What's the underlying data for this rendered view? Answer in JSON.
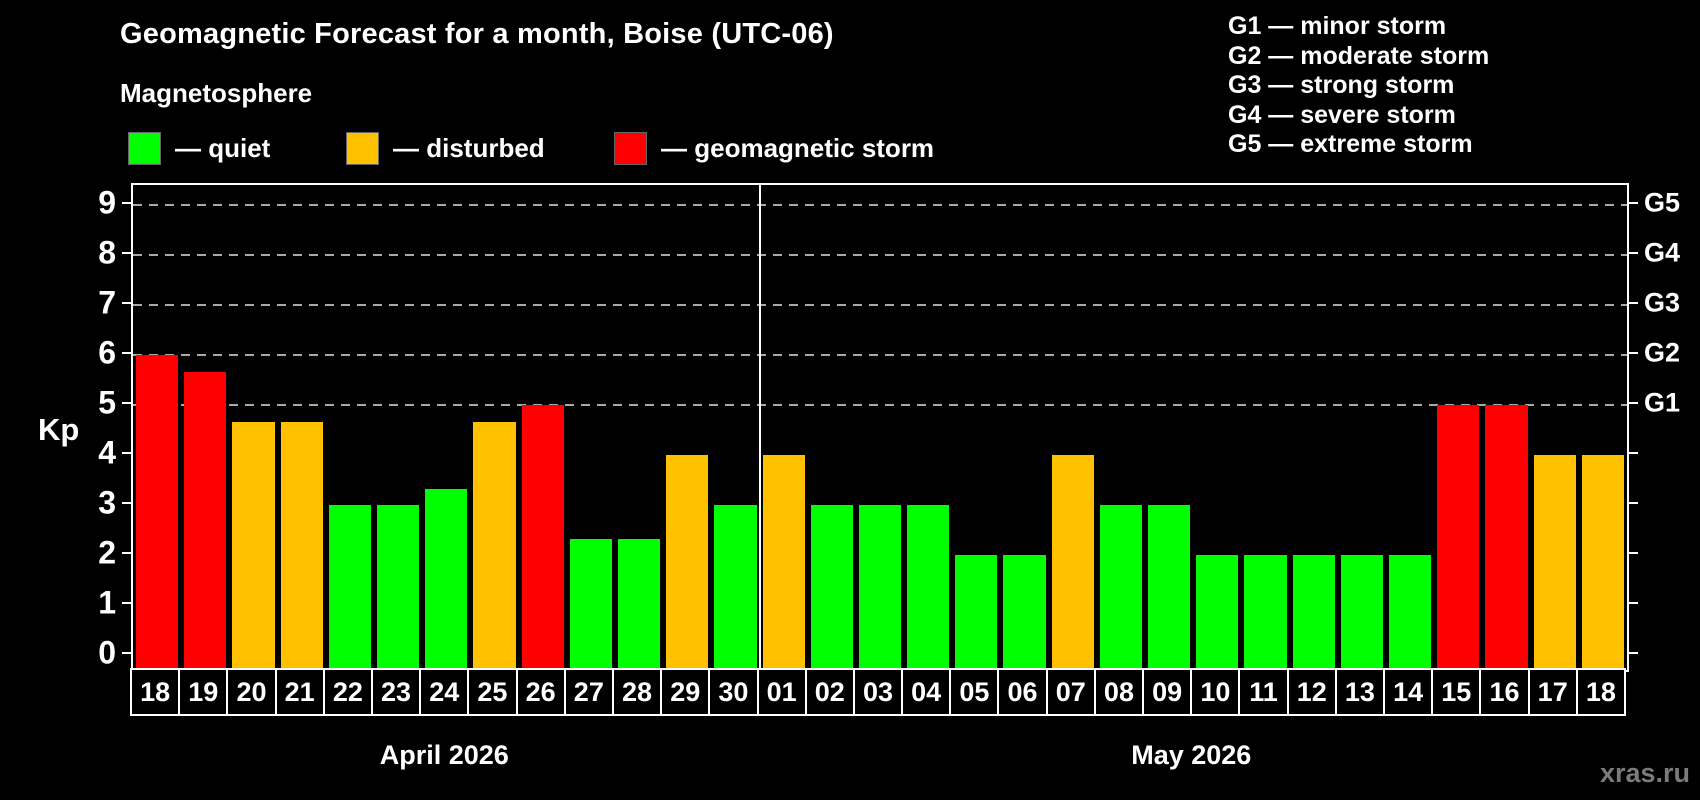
{
  "title": "Geomagnetic Forecast for a month, Boise (UTC-06)",
  "legend": {
    "heading": "Magnetosphere",
    "items": [
      {
        "key": "quiet",
        "label": "— quiet",
        "color": "#00ff00",
        "x": 128
      },
      {
        "key": "disturbed",
        "label": "— disturbed",
        "color": "#ffc000",
        "x": 346
      },
      {
        "key": "storm",
        "label": "— geomagnetic storm",
        "color": "#ff0000",
        "x": 614
      }
    ]
  },
  "g_legend": [
    "G1 — minor storm",
    "G2 — moderate storm",
    "G3 — strong storm",
    "G4 — severe storm",
    "G5 — extreme storm"
  ],
  "watermark": "xras.ru",
  "chart_data": {
    "type": "bar",
    "title": "Geomagnetic Forecast for a month, Boise (UTC-06)",
    "ylabel": "Kp",
    "ylim": [
      -0.3,
      9.4
    ],
    "yticks": [
      0,
      1,
      2,
      3,
      4,
      5,
      6,
      7,
      8,
      9
    ],
    "gridlines_at": [
      5,
      6,
      7,
      8,
      9
    ],
    "grid": "dashed horizontal at storm levels only",
    "legend_position": "top",
    "right_axis_labels": [
      {
        "label": "G1",
        "value": 5
      },
      {
        "label": "G2",
        "value": 6
      },
      {
        "label": "G3",
        "value": 7
      },
      {
        "label": "G4",
        "value": 8
      },
      {
        "label": "G5",
        "value": 9
      }
    ],
    "colors": {
      "quiet": "#00ff00",
      "disturbed": "#ffc000",
      "storm": "#ff0000"
    },
    "months": [
      {
        "label": "April 2026",
        "days": [
          {
            "date": "18",
            "kp": 6.0,
            "status": "storm"
          },
          {
            "date": "19",
            "kp": 5.67,
            "status": "storm"
          },
          {
            "date": "20",
            "kp": 4.67,
            "status": "disturbed"
          },
          {
            "date": "21",
            "kp": 4.67,
            "status": "disturbed"
          },
          {
            "date": "22",
            "kp": 3.0,
            "status": "quiet"
          },
          {
            "date": "23",
            "kp": 3.0,
            "status": "quiet"
          },
          {
            "date": "24",
            "kp": 3.33,
            "status": "quiet"
          },
          {
            "date": "25",
            "kp": 4.67,
            "status": "disturbed"
          },
          {
            "date": "26",
            "kp": 5.0,
            "status": "storm"
          },
          {
            "date": "27",
            "kp": 2.33,
            "status": "quiet"
          },
          {
            "date": "28",
            "kp": 2.33,
            "status": "quiet"
          },
          {
            "date": "29",
            "kp": 4.0,
            "status": "disturbed"
          },
          {
            "date": "30",
            "kp": 3.0,
            "status": "quiet"
          }
        ]
      },
      {
        "label": "May 2026",
        "days": [
          {
            "date": "01",
            "kp": 4.0,
            "status": "disturbed"
          },
          {
            "date": "02",
            "kp": 3.0,
            "status": "quiet"
          },
          {
            "date": "03",
            "kp": 3.0,
            "status": "quiet"
          },
          {
            "date": "04",
            "kp": 3.0,
            "status": "quiet"
          },
          {
            "date": "05",
            "kp": 2.0,
            "status": "quiet"
          },
          {
            "date": "06",
            "kp": 2.0,
            "status": "quiet"
          },
          {
            "date": "07",
            "kp": 4.0,
            "status": "disturbed"
          },
          {
            "date": "08",
            "kp": 3.0,
            "status": "quiet"
          },
          {
            "date": "09",
            "kp": 3.0,
            "status": "quiet"
          },
          {
            "date": "10",
            "kp": 2.0,
            "status": "quiet"
          },
          {
            "date": "11",
            "kp": 2.0,
            "status": "quiet"
          },
          {
            "date": "12",
            "kp": 2.0,
            "status": "quiet"
          },
          {
            "date": "13",
            "kp": 2.0,
            "status": "quiet"
          },
          {
            "date": "14",
            "kp": 2.0,
            "status": "quiet"
          },
          {
            "date": "15",
            "kp": 5.0,
            "status": "storm"
          },
          {
            "date": "16",
            "kp": 5.0,
            "status": "storm"
          },
          {
            "date": "17",
            "kp": 4.0,
            "status": "disturbed"
          },
          {
            "date": "18",
            "kp": 4.0,
            "status": "disturbed"
          }
        ]
      }
    ]
  }
}
